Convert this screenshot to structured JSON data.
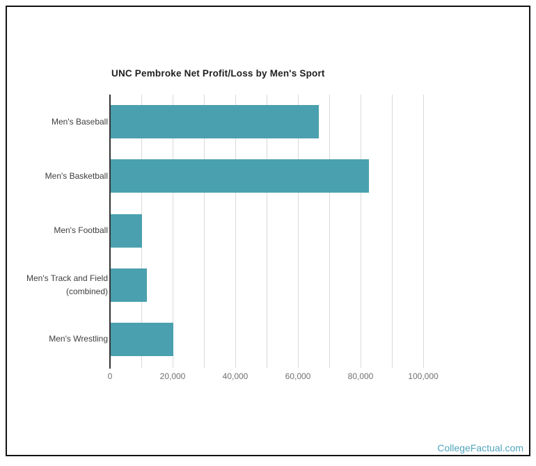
{
  "chart_data": {
    "type": "bar",
    "orientation": "horizontal",
    "title": "UNC Pembroke Net Profit/Loss by Men's Sport",
    "categories": [
      "Men's Baseball",
      "Men's Basketball",
      "Men's Football",
      "Men's Track and Field (combined)",
      "Men's Wrestling"
    ],
    "values": [
      66700,
      82700,
      10200,
      11700,
      20200
    ],
    "xlim": [
      0,
      100000
    ],
    "x_major_ticks": [
      0,
      20000,
      40000,
      60000,
      80000,
      100000
    ],
    "x_tick_labels": [
      "0",
      "20,000",
      "40,000",
      "60,000",
      "80,000",
      "100,000"
    ],
    "x_minor_tick_interval": 10000,
    "grid": true,
    "legend": "none",
    "colors": {
      "bar": "#4AA0AE",
      "title_text": "#1e1e1e",
      "category_label_text": "#3d3d3d",
      "tick_label_text": "#707070",
      "gridline": "#d9d9d9",
      "axis_line": "#333333"
    }
  },
  "footer": {
    "brand_label": "CollegeFactual.com",
    "brand_color": "#52A5BC"
  }
}
